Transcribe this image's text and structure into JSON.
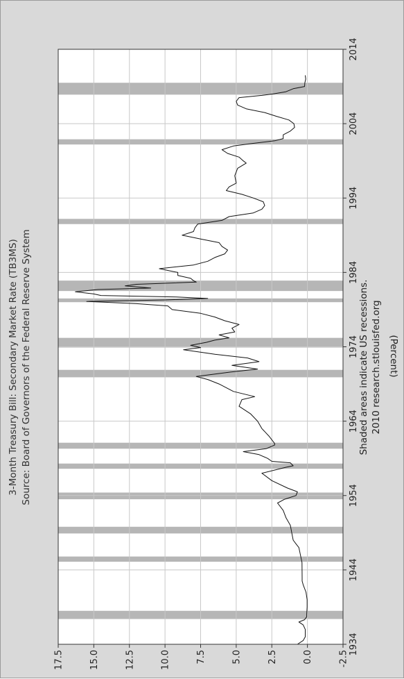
{
  "chart_data": {
    "type": "line",
    "title": "3-Month Treasury Bill: Secondary Market Rate (TB3MS)",
    "subtitle": "Source: Board of Governors of the Federal Reserve System",
    "ylabel": "(Percent)",
    "xlabel": "",
    "note_line1": "Shaded areas indicate US recessions.",
    "note_line2": "2010 research.stlouisfed.org",
    "xlim": [
      1934,
      2014
    ],
    "ylim": [
      -2.5,
      17.5
    ],
    "x_ticks": [
      1934,
      1944,
      1954,
      1964,
      1974,
      1984,
      1994,
      2004,
      2014
    ],
    "x_tick_labels": [
      "1934",
      "1944",
      "1954",
      "1964",
      "1974",
      "1984",
      "1994",
      "2004",
      "2014"
    ],
    "y_ticks": [
      -2.5,
      0.0,
      2.5,
      5.0,
      7.5,
      10.0,
      12.5,
      15.0,
      17.5
    ],
    "y_tick_labels": [
      "-2.5",
      "0.0",
      "2.5",
      "5.0",
      "7.5",
      "10.0",
      "12.5",
      "15.0",
      "17.5"
    ],
    "grid": true,
    "orientation": "rotated 90 degrees counter-clockwise",
    "recessions": [
      [
        1937.4,
        1938.5
      ],
      [
        1945.1,
        1945.8
      ],
      [
        1948.9,
        1949.8
      ],
      [
        1953.5,
        1954.4
      ],
      [
        1957.6,
        1958.3
      ],
      [
        1960.3,
        1961.1
      ],
      [
        1969.9,
        1970.9
      ],
      [
        1973.9,
        1975.2
      ],
      [
        1980.0,
        1980.5
      ],
      [
        1981.5,
        1982.9
      ],
      [
        1990.5,
        1991.2
      ],
      [
        2001.2,
        2001.9
      ],
      [
        2007.9,
        2009.5
      ]
    ],
    "series": [
      {
        "x": [
          1934.0,
          1934.5,
          1935.0,
          1936.0,
          1936.6,
          1937.0,
          1937.3,
          1937.7,
          1938.0,
          1939.0,
          1940.0,
          1941.0,
          1942.0,
          1942.5,
          1943.0,
          1945.0,
          1947.0,
          1947.5,
          1948.0,
          1949.0,
          1950.0,
          1951.0,
          1952.0,
          1953.0,
          1953.5,
          1954.0,
          1954.5,
          1955.0,
          1956.0,
          1957.0,
          1957.8,
          1958.0,
          1958.4,
          1958.6,
          1959.0,
          1959.5,
          1959.9,
          1960.3,
          1960.8,
          1961.0,
          1962.0,
          1963.0,
          1964.0,
          1965.0,
          1966.0,
          1966.9,
          1967.3,
          1968.0,
          1969.0,
          1969.6,
          1970.0,
          1970.6,
          1971.0,
          1971.5,
          1972.0,
          1972.5,
          1973.0,
          1973.6,
          1973.9,
          1974.2,
          1974.6,
          1974.9,
          1975.2,
          1975.6,
          1976.0,
          1976.5,
          1977.0,
          1977.5,
          1978.0,
          1978.5,
          1979.0,
          1979.5,
          1979.8,
          1980.1,
          1980.3,
          1980.5,
          1980.7,
          1980.9,
          1981.1,
          1981.4,
          1981.7,
          1981.9,
          1982.2,
          1982.4,
          1982.7,
          1982.9,
          1983.2,
          1983.6,
          1984.0,
          1984.5,
          1985.0,
          1985.5,
          1986.0,
          1986.5,
          1987.0,
          1987.5,
          1988.0,
          1988.5,
          1989.0,
          1989.5,
          1990.0,
          1990.5,
          1991.0,
          1991.5,
          1992.0,
          1992.5,
          1993.0,
          1993.5,
          1994.0,
          1994.5,
          1995.0,
          1995.5,
          1996.0,
          1997.0,
          1998.0,
          1998.7,
          1999.0,
          1999.5,
          2000.0,
          2000.5,
          2001.0,
          2001.3,
          2001.7,
          2002.0,
          2002.5,
          2003.0,
          2003.5,
          2004.0,
          2004.5,
          2005.0,
          2005.5,
          2006.0,
          2006.5,
          2007.0,
          2007.5,
          2007.8,
          2008.0,
          2008.3,
          2008.7,
          2009.0,
          2009.5,
          2010.0,
          2010.5
        ],
        "values": [
          0.7,
          0.3,
          0.15,
          0.15,
          0.3,
          0.6,
          0.2,
          0.05,
          0.05,
          0.02,
          0.02,
          0.1,
          0.3,
          0.37,
          0.37,
          0.38,
          0.6,
          0.8,
          1.0,
          1.1,
          1.2,
          1.5,
          1.7,
          2.1,
          1.6,
          0.8,
          0.7,
          1.4,
          2.5,
          3.2,
          1.5,
          1.0,
          1.2,
          2.5,
          2.8,
          3.4,
          4.5,
          2.9,
          2.3,
          2.3,
          2.7,
          3.2,
          3.5,
          4.0,
          4.8,
          4.6,
          3.7,
          5.2,
          6.2,
          7.0,
          7.8,
          5.4,
          3.5,
          5.3,
          3.4,
          4.2,
          6.5,
          8.7,
          7.5,
          8.2,
          7.1,
          6.5,
          5.5,
          6.2,
          5.1,
          5.3,
          4.8,
          5.8,
          6.5,
          7.5,
          9.5,
          9.8,
          12.0,
          15.5,
          10.0,
          7.0,
          9.2,
          14.5,
          15.0,
          16.3,
          14.7,
          11.0,
          12.8,
          12.0,
          7.8,
          8.0,
          8.2,
          9.1,
          9.1,
          10.4,
          8.0,
          7.0,
          6.5,
          5.8,
          5.6,
          6.0,
          6.2,
          7.5,
          8.8,
          8.0,
          7.9,
          7.7,
          6.0,
          5.5,
          3.8,
          3.2,
          3.0,
          3.1,
          3.8,
          4.6,
          5.7,
          5.5,
          5.0,
          5.1,
          4.9,
          4.3,
          4.5,
          4.8,
          5.6,
          6.0,
          5.2,
          4.0,
          2.3,
          1.7,
          1.7,
          1.2,
          0.9,
          0.95,
          1.3,
          2.2,
          3.0,
          4.3,
          4.9,
          5.0,
          4.8,
          3.2,
          2.4,
          1.5,
          1.0,
          0.2,
          0.18,
          0.12,
          0.15
        ]
      }
    ]
  }
}
